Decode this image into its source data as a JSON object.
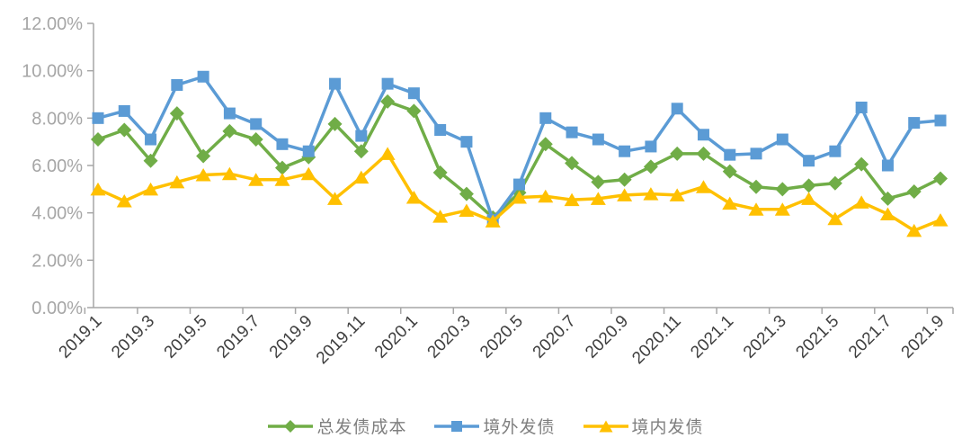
{
  "chart_data": {
    "type": "line",
    "title": "",
    "categories": [
      "2019.1",
      "2019.2",
      "2019.3",
      "2019.4",
      "2019.5",
      "2019.6",
      "2019.7",
      "2019.8",
      "2019.9",
      "2019.10",
      "2019.11",
      "2019.12",
      "2020.1",
      "2020.2",
      "2020.3",
      "2020.4",
      "2020.5",
      "2020.6",
      "2020.7",
      "2020.8",
      "2020.9",
      "2020.10",
      "2020.11",
      "2020.12",
      "2021.1",
      "2021.2",
      "2021.3",
      "2021.4",
      "2021.5",
      "2021.6",
      "2021.7",
      "2021.8",
      "2021.9"
    ],
    "x_tick_labels": [
      "2019.1",
      "2019.3",
      "2019.5",
      "2019.7",
      "2019.9",
      "2019.11",
      "2020.1",
      "2020.3",
      "2020.5",
      "2020.7",
      "2020.9",
      "2020.11",
      "2021.1",
      "2021.3",
      "2021.5",
      "2021.7",
      "2021.9"
    ],
    "series": [
      {
        "id": "total-issuance-cost",
        "name": "总发债成本",
        "marker": "diamond",
        "color": "#70AD47",
        "values": [
          7.1,
          7.5,
          6.2,
          8.2,
          6.4,
          7.45,
          7.1,
          5.9,
          6.35,
          7.75,
          6.6,
          8.7,
          8.3,
          5.7,
          4.8,
          3.8,
          4.85,
          6.9,
          6.1,
          5.3,
          5.4,
          5.95,
          6.5,
          6.5,
          5.75,
          5.1,
          5.0,
          5.15,
          5.25,
          6.05,
          4.6,
          4.9,
          5.45
        ]
      },
      {
        "id": "offshore-bond-issuance",
        "name": "境外发债",
        "marker": "square",
        "color": "#5B9BD5",
        "values": [
          8.0,
          8.3,
          7.1,
          9.4,
          9.75,
          8.2,
          7.75,
          6.9,
          6.6,
          9.45,
          7.25,
          9.45,
          9.05,
          7.5,
          7.0,
          3.7,
          5.2,
          8.0,
          7.4,
          7.1,
          6.6,
          6.8,
          8.4,
          7.3,
          6.45,
          6.5,
          7.1,
          6.2,
          6.6,
          8.45,
          6.0,
          7.8,
          7.9
        ]
      },
      {
        "id": "onshore-bond-issuance",
        "name": "境内发债",
        "marker": "triangle",
        "color": "#FFC000",
        "values": [
          5.0,
          4.5,
          5.0,
          5.3,
          5.6,
          5.65,
          5.4,
          5.4,
          5.65,
          4.6,
          5.5,
          6.5,
          4.65,
          3.85,
          4.1,
          3.65,
          4.65,
          4.7,
          4.55,
          4.6,
          4.75,
          4.8,
          4.75,
          5.1,
          4.4,
          4.15,
          4.15,
          4.6,
          3.75,
          4.45,
          3.95,
          3.25,
          3.7
        ]
      }
    ],
    "y_axis": {
      "min": 0,
      "max": 12,
      "step": 2,
      "tick_labels": [
        "0.00%",
        "2.00%",
        "4.00%",
        "6.00%",
        "8.00%",
        "10.00%",
        "12.00%"
      ],
      "format": "percent"
    },
    "x_label_rotation_deg": -45,
    "legend_position": "bottom",
    "grid": false,
    "style": {
      "axis_color": "#A6A6A6",
      "y_tick_label_color": "#A6A6A6",
      "x_tick_label_color": "#3F3F3F",
      "legend_text_color": "#7F7F7F",
      "background": "#FFFFFF"
    }
  }
}
